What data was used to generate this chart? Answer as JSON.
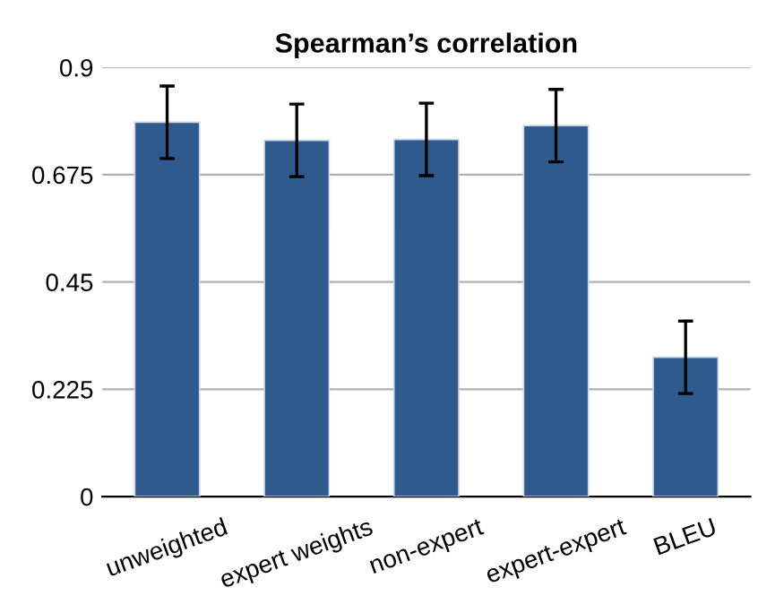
{
  "chart_data": {
    "type": "bar",
    "title": "Spearman’s correlation",
    "categories": [
      "unweighted",
      "expert weights",
      "non-expert",
      "expert-expert",
      "BLEU"
    ],
    "values": [
      0.785,
      0.747,
      0.749,
      0.778,
      0.292
    ],
    "errors": [
      0.076,
      0.076,
      0.076,
      0.076,
      0.076
    ],
    "color": "#2f5a8e",
    "ylim": [
      0,
      0.9
    ],
    "yticks": [
      0,
      0.225,
      0.45,
      0.675,
      0.9
    ],
    "grid": "y",
    "legend": false
  }
}
